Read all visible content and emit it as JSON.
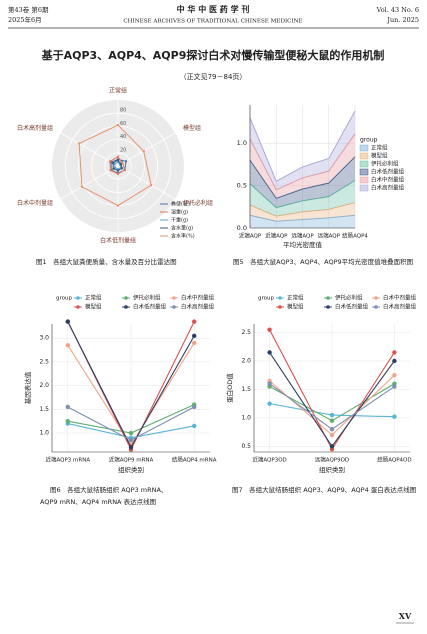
{
  "header": {
    "volume": "第43卷 第6期",
    "date": "2025年6月",
    "journal": "中 华 中 医 药 学 刊",
    "journal_en": "CHINESE ARCHIVES OF TRADITIONAL CHINESE MEDICINE",
    "volume_en": "Vol. 43 No. 6",
    "date_en": "Jun. 2025"
  },
  "title": "基于AQP3、AQP4、AQP9探讨白术对慢传输型便秘大鼠的作用机制",
  "subtitle": "（正文见79－84页）",
  "page_number": "XV",
  "chart_data": [
    {
      "type": "radar",
      "caption": [
        "图1　各组大鼠粪便质量、含水量及百分比雷达图"
      ],
      "categories": [
        "正常组",
        "模型组",
        "伊托必利组",
        "白术低剂量组",
        "白术中剂量组",
        "白术高剂量组"
      ],
      "ylim": [
        0,
        100
      ],
      "yticks": [
        0,
        20,
        40,
        60,
        80
      ],
      "series": [
        {
          "name": "粪便(粒)",
          "color": "#4a6fa5",
          "values": [
            10,
            14,
            12,
            11,
            12,
            12
          ]
        },
        {
          "name": "湿重(g)",
          "color": "#e07b5a",
          "values": [
            14,
            8,
            12,
            12,
            13,
            14
          ]
        },
        {
          "name": "干重(g)",
          "color": "#5aa0c8",
          "values": [
            6,
            4,
            5,
            5,
            5,
            6
          ]
        },
        {
          "name": "含水量(g)",
          "color": "#3b5b7a",
          "values": [
            9,
            5,
            7,
            7,
            8,
            9
          ]
        },
        {
          "name": "含水率(%)",
          "color": "#e8916c",
          "values": [
            62,
            45,
            58,
            60,
            63,
            68
          ]
        }
      ]
    },
    {
      "type": "area",
      "stacked": true,
      "caption": [
        "图5　各组大鼠AQP3、AQP4、AQP9平均光密度值堆叠面积图"
      ],
      "categories": [
        "近端AQP",
        "近端AQP",
        "远端AQP",
        "远端AQP",
        "结肠AQP4"
      ],
      "xlabel": "平均光密度值",
      "legend_title": "group",
      "ylim": [
        0,
        1.45
      ],
      "yticks": [
        {
          "value": 0,
          "label": "0.0"
        },
        0.5,
        {
          "value": 1,
          "label": "1.0"
        }
      ],
      "series": [
        {
          "name": "正常组",
          "color": "#7fb2d9",
          "values": [
            0.15,
            0.08,
            0.1,
            0.12,
            0.15
          ]
        },
        {
          "name": "模型组",
          "color": "#e8b27d",
          "values": [
            0.12,
            0.06,
            0.09,
            0.1,
            0.15
          ]
        },
        {
          "name": "伊托必利组",
          "color": "#6cc0a8",
          "values": [
            0.25,
            0.1,
            0.13,
            0.15,
            0.26
          ]
        },
        {
          "name": "白术低剂量组",
          "color": "#3d5a8a",
          "values": [
            0.28,
            0.11,
            0.14,
            0.16,
            0.28
          ]
        },
        {
          "name": "白术中剂量组",
          "color": "#e89aa2",
          "values": [
            0.25,
            0.1,
            0.13,
            0.14,
            0.27
          ]
        },
        {
          "name": "白术高剂量组",
          "color": "#a9a9dc",
          "values": [
            0.25,
            0.1,
            0.13,
            0.15,
            0.27
          ]
        }
      ]
    },
    {
      "type": "line",
      "caption": [
        "图6　各组大鼠结肠组织 AQP3 mRNA、",
        "AQP9 mRN、AQP4 mRNA 表达点线图"
      ],
      "categories": [
        "近端AQP3 mRNA",
        "近端AQP9 mRNA",
        "结肠AQP4 mRNA"
      ],
      "xlabel": "组织类别",
      "ylabel": "基因表达值",
      "legend_title": "group",
      "ylim": [
        0.6,
        3.3
      ],
      "yticks": [
        {
          "value": 1,
          "label": "1.0"
        },
        1.5,
        {
          "value": 2,
          "label": "2.0"
        },
        2.5,
        {
          "value": 3,
          "label": "3.0"
        }
      ],
      "series": [
        {
          "name": "正常组",
          "color": "#5ab4d6",
          "values": [
            1.2,
            0.9,
            1.15
          ]
        },
        {
          "name": "伊托必利组",
          "color": "#5fae6e",
          "values": [
            1.25,
            1.0,
            1.6
          ]
        },
        {
          "name": "白术中剂量组",
          "color": "#f0a58a",
          "values": [
            2.85,
            0.75,
            2.9
          ]
        },
        {
          "name": "模型组",
          "color": "#d9534f",
          "values": [
            3.35,
            0.65,
            3.35
          ]
        },
        {
          "name": "白术低剂量组",
          "color": "#2c3e63",
          "values": [
            3.35,
            0.7,
            3.05
          ]
        },
        {
          "name": "白术高剂量组",
          "color": "#7d8fb3",
          "values": [
            1.55,
            0.85,
            1.55
          ]
        }
      ]
    },
    {
      "type": "line",
      "caption": [
        "图7　各组大鼠结肠组织 AQP3、AQP9、AQP4 蛋白表达点线图"
      ],
      "categories": [
        "近端AQP3OD",
        "远端AQP9OD",
        "结肠AQP4OD"
      ],
      "xlabel": "组织类别",
      "ylabel": "蛋白OD值",
      "legend_title": "group",
      "ylim": [
        0.4,
        2.65
      ],
      "yticks": [
        0.5,
        {
          "value": 1,
          "label": "1.0"
        },
        1.5,
        {
          "value": 2,
          "label": "2.0"
        },
        2.5
      ],
      "series": [
        {
          "name": "正常组",
          "color": "#5ab4d6",
          "values": [
            1.25,
            1.05,
            1.02
          ]
        },
        {
          "name": "伊托必利组",
          "color": "#5fae6e",
          "values": [
            1.55,
            0.95,
            1.6
          ]
        },
        {
          "name": "白术中剂量组",
          "color": "#f0a58a",
          "values": [
            1.65,
            0.7,
            1.75
          ]
        },
        {
          "name": "模型组",
          "color": "#d9534f",
          "values": [
            2.55,
            0.45,
            2.15
          ]
        },
        {
          "name": "白术低剂量组",
          "color": "#2c3e63",
          "values": [
            2.15,
            0.5,
            2.0
          ]
        },
        {
          "name": "白术高剂量组",
          "color": "#7d8fb3",
          "values": [
            1.6,
            0.8,
            1.55
          ]
        }
      ]
    }
  ]
}
